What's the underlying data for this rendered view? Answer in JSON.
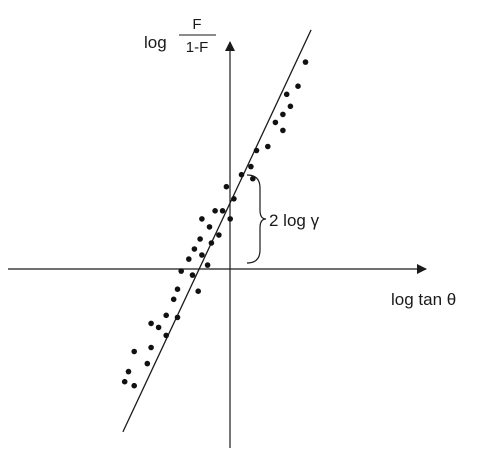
{
  "chart_data": {
    "type": "scatter",
    "x_axis_label": "log tan θ",
    "y_axis_label": {
      "prefix": "log",
      "numerator": "F",
      "denominator": "1-F"
    },
    "annotation": "2 log γ",
    "grid": false,
    "legend": "none",
    "xlim": [
      -6.1,
      5.0
    ],
    "ylim": [
      -4.5,
      5.6
    ],
    "fit_line": {
      "slope": 2.0,
      "intercept": 2.0
    },
    "points": [
      {
        "x": 1.8,
        "y": 5.1
      },
      {
        "x": 1.6,
        "y": 4.5
      },
      {
        "x": 1.3,
        "y": 4.3
      },
      {
        "x": 1.4,
        "y": 4.0
      },
      {
        "x": 1.2,
        "y": 3.8
      },
      {
        "x": 1.0,
        "y": 3.6
      },
      {
        "x": 1.2,
        "y": 3.4
      },
      {
        "x": 0.8,
        "y": 3.0
      },
      {
        "x": 0.5,
        "y": 2.9
      },
      {
        "x": 0.35,
        "y": 2.5
      },
      {
        "x": 0.1,
        "y": 2.3
      },
      {
        "x": 0.4,
        "y": 2.2
      },
      {
        "x": -0.3,
        "y": 2.0
      },
      {
        "x": -0.1,
        "y": 1.7
      },
      {
        "x": -0.4,
        "y": 1.4
      },
      {
        "x": -0.2,
        "y": 1.2
      },
      {
        "x": -0.6,
        "y": 1.4
      },
      {
        "x": -0.95,
        "y": 1.2
      },
      {
        "x": -0.75,
        "y": 1.0
      },
      {
        "x": -0.5,
        "y": 0.8
      },
      {
        "x": -1.0,
        "y": 0.7
      },
      {
        "x": -0.7,
        "y": 0.6
      },
      {
        "x": -0.95,
        "y": 0.3
      },
      {
        "x": -1.15,
        "y": 0.45
      },
      {
        "x": -1.3,
        "y": 0.2
      },
      {
        "x": -0.8,
        "y": 0.05
      },
      {
        "x": -1.5,
        "y": -0.1
      },
      {
        "x": -1.2,
        "y": -0.2
      },
      {
        "x": -1.05,
        "y": -0.6
      },
      {
        "x": -1.6,
        "y": -0.55
      },
      {
        "x": -1.7,
        "y": -0.8
      },
      {
        "x": -1.9,
        "y": -1.2
      },
      {
        "x": -1.6,
        "y": -1.25
      },
      {
        "x": -2.1,
        "y": -1.5
      },
      {
        "x": -2.3,
        "y": -1.4
      },
      {
        "x": -1.9,
        "y": -1.7
      },
      {
        "x": -2.3,
        "y": -2.0
      },
      {
        "x": -2.75,
        "y": -2.1
      },
      {
        "x": -2.4,
        "y": -2.4
      },
      {
        "x": -2.9,
        "y": -2.6
      },
      {
        "x": -3.0,
        "y": -2.85
      },
      {
        "x": -2.75,
        "y": -2.95
      }
    ]
  }
}
